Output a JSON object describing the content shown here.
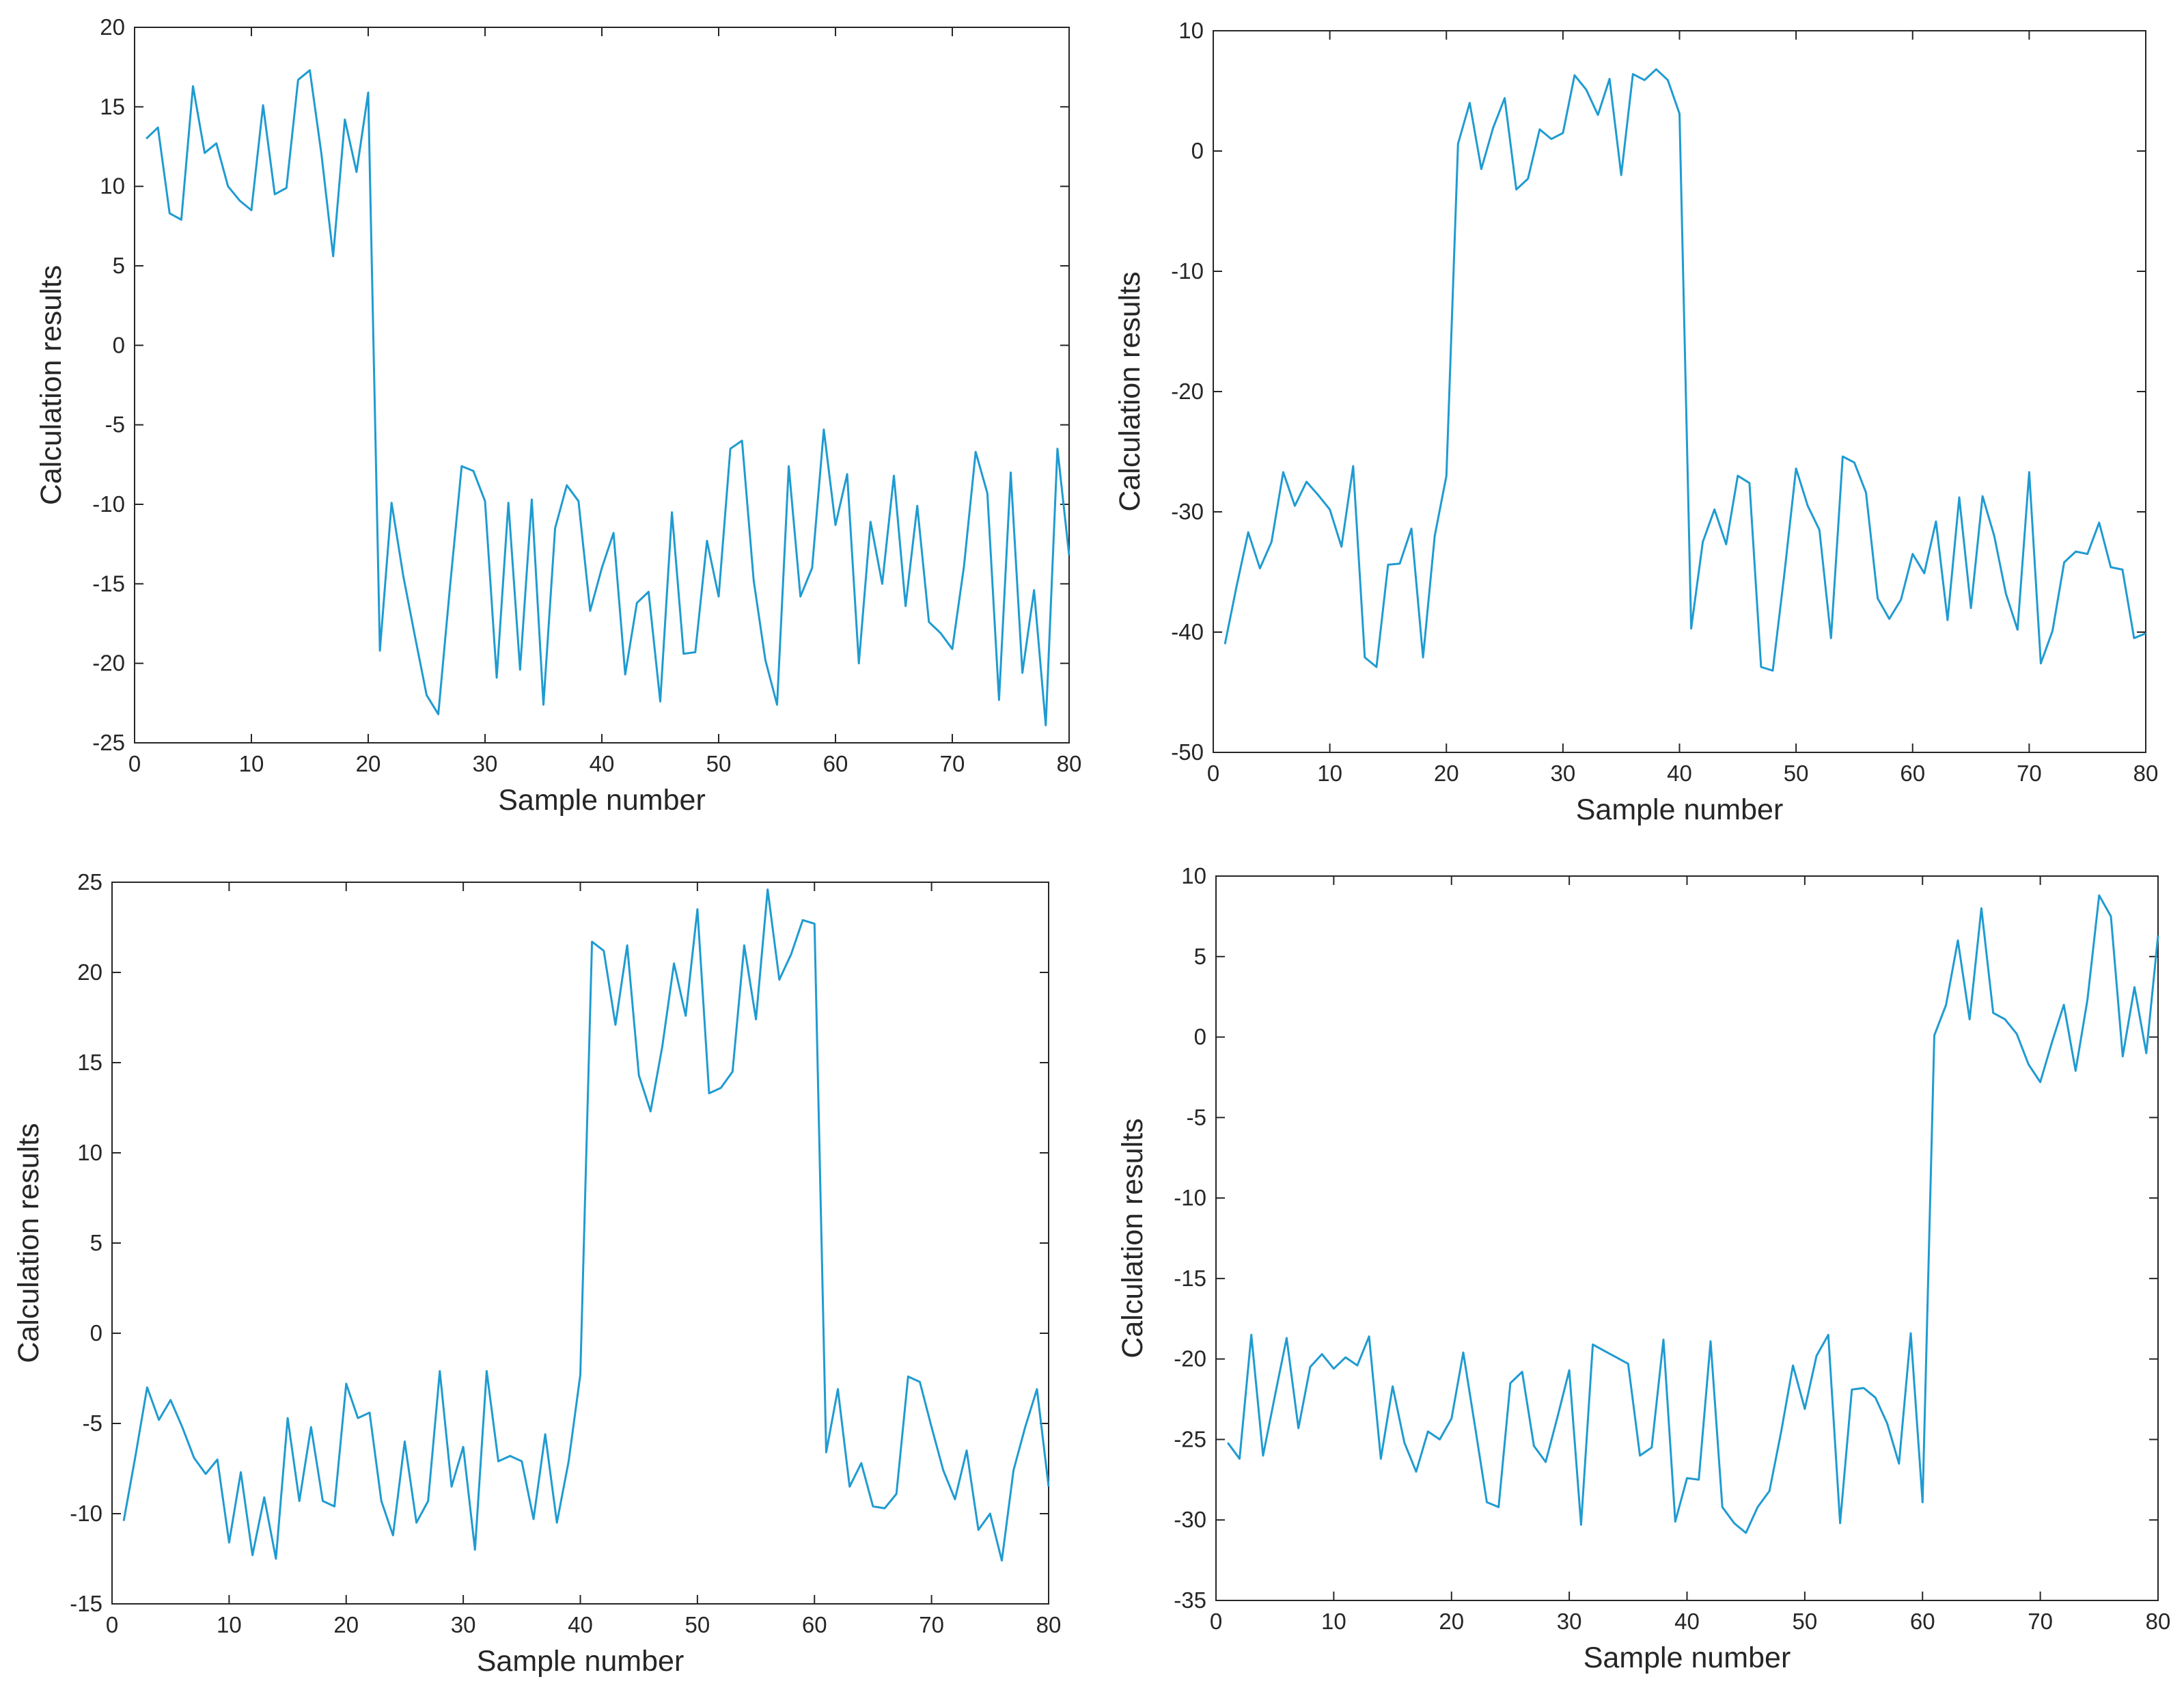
{
  "chart_data": [
    {
      "type": "line",
      "xlabel": "Sample number",
      "ylabel": "Calculation results",
      "xlim": [
        0,
        80
      ],
      "ylim": [
        -25,
        20
      ],
      "xticks": [
        0,
        10,
        20,
        30,
        40,
        50,
        60,
        70,
        80
      ],
      "yticks": [
        -25,
        -20,
        -15,
        -10,
        -5,
        0,
        5,
        10,
        15,
        20
      ],
      "series": [
        {
          "name": "Calculation results",
          "color": "#1f9bd1",
          "x": [
            1,
            2,
            3,
            4,
            5,
            6,
            7,
            8,
            9,
            10,
            11,
            12,
            13,
            14,
            15,
            16,
            17,
            18,
            19,
            20,
            21,
            22,
            23,
            24,
            25,
            26,
            27,
            28,
            29,
            30,
            31,
            32,
            33,
            34,
            35,
            36,
            37,
            38,
            39,
            40,
            41,
            42,
            43,
            44,
            45,
            46,
            47,
            48,
            49,
            50,
            51,
            52,
            53,
            54,
            55,
            56,
            57,
            58,
            59,
            60,
            61,
            62,
            63,
            64,
            65,
            66,
            67,
            68,
            69,
            70,
            71,
            72,
            73,
            74,
            75,
            76,
            77,
            78,
            79,
            80
          ],
          "values": [
            13,
            13.7,
            8.3,
            7.9,
            16.3,
            12.1,
            12.7,
            10,
            9.1,
            8.5,
            15.1,
            9.5,
            9.9,
            16.7,
            17.3,
            12,
            5.6,
            14.2,
            10.9,
            15.9,
            -19.2,
            -9.9,
            -14.5,
            -18.3,
            -22,
            -23.2,
            -15.2,
            -7.6,
            -7.9,
            -9.8,
            -20.9,
            -9.9,
            -20.4,
            -9.7,
            -22.6,
            -11.5,
            -8.8,
            -9.8,
            -16.7,
            -14,
            -11.8,
            -20.7,
            -16.2,
            -15.5,
            -22.4,
            -10.5,
            -19.4,
            -19.3,
            -12.3,
            -15.8,
            -6.5,
            -6,
            -14.8,
            -19.8,
            -22.6,
            -7.6,
            -15.8,
            -14,
            -5.3,
            -11.3,
            -8.1,
            -20,
            -11.1,
            -15,
            -8.2,
            -16.4,
            -10.1,
            -17.4,
            -18.1,
            -19.1,
            -13.9,
            -6.7,
            -9.3,
            -22.3,
            -8,
            -20.6,
            -15.4,
            -23.9,
            -6.5,
            -13.2
          ]
        }
      ]
    },
    {
      "type": "line",
      "xlabel": "Sample number",
      "ylabel": "Calculation results",
      "xlim": [
        0,
        80
      ],
      "ylim": [
        -50,
        10
      ],
      "xticks": [
        0,
        10,
        20,
        30,
        40,
        50,
        60,
        70,
        80
      ],
      "yticks": [
        -50,
        -40,
        -30,
        -20,
        -10,
        0,
        10
      ],
      "series": [
        {
          "name": "Calculation results",
          "color": "#1f9bd1",
          "x": [
            1,
            2,
            3,
            4,
            5,
            6,
            7,
            8,
            9,
            10,
            11,
            12,
            13,
            14,
            15,
            16,
            17,
            18,
            19,
            20,
            21,
            22,
            23,
            24,
            25,
            26,
            27,
            28,
            29,
            30,
            31,
            32,
            33,
            34,
            35,
            36,
            37,
            38,
            39,
            40,
            41,
            42,
            43,
            44,
            45,
            46,
            47,
            48,
            49,
            50,
            51,
            52,
            53,
            54,
            55,
            56,
            57,
            58,
            59,
            60,
            61,
            62,
            63,
            64,
            65,
            66,
            67,
            68,
            69,
            70,
            71,
            72,
            73,
            74,
            75,
            76,
            77,
            78,
            79,
            80
          ],
          "values": [
            -41,
            -36.2,
            -31.7,
            -34.7,
            -32.5,
            -26.7,
            -29.5,
            -27.5,
            -28.6,
            -29.8,
            -32.9,
            -26.2,
            -42.1,
            -42.9,
            -34.4,
            -34.3,
            -31.4,
            -42.1,
            -32,
            -27,
            0.6,
            4,
            -1.5,
            1.9,
            4.4,
            -3.2,
            -2.3,
            1.8,
            1,
            1.5,
            6.3,
            5.1,
            3,
            6,
            -2,
            6.4,
            5.9,
            6.8,
            5.9,
            3.1,
            -39.7,
            -32.5,
            -29.8,
            -32.7,
            -27,
            -27.6,
            -42.9,
            -43.2,
            -35.1,
            -26.4,
            -29.5,
            -31.5,
            -40.5,
            -25.4,
            -25.9,
            -28.4,
            -37.2,
            -38.9,
            -37.3,
            -33.5,
            -35.1,
            -30.8,
            -39,
            -28.8,
            -38,
            -28.7,
            -32,
            -36.8,
            -39.8,
            -26.7,
            -42.6,
            -39.9,
            -34.2,
            -33.3,
            -33.5,
            -30.9,
            -34.6,
            -34.8,
            -40.5,
            -40.1
          ]
        }
      ]
    },
    {
      "type": "line",
      "xlabel": "Sample number",
      "ylabel": "Calculation results",
      "xlim": [
        0,
        80
      ],
      "ylim": [
        -15,
        25
      ],
      "xticks": [
        0,
        10,
        20,
        30,
        40,
        50,
        60,
        70,
        80
      ],
      "yticks": [
        -15,
        -10,
        -5,
        0,
        5,
        10,
        15,
        20,
        25
      ],
      "series": [
        {
          "name": "Calculation results",
          "color": "#1f9bd1",
          "x": [
            1,
            2,
            3,
            4,
            5,
            6,
            7,
            8,
            9,
            10,
            11,
            12,
            13,
            14,
            15,
            16,
            17,
            18,
            19,
            20,
            21,
            22,
            23,
            24,
            25,
            26,
            27,
            28,
            29,
            30,
            31,
            32,
            33,
            34,
            35,
            36,
            37,
            38,
            39,
            40,
            41,
            42,
            43,
            44,
            45,
            46,
            47,
            48,
            49,
            50,
            51,
            52,
            53,
            54,
            55,
            56,
            57,
            58,
            59,
            60,
            61,
            62,
            63,
            64,
            65,
            66,
            67,
            68,
            69,
            70,
            71,
            72,
            73,
            74,
            75,
            76,
            77,
            78,
            79,
            80
          ],
          "values": [
            -10.4,
            -6.8,
            -3,
            -4.8,
            -3.7,
            -5.2,
            -6.9,
            -7.8,
            -7,
            -11.6,
            -7.7,
            -12.3,
            -9.1,
            -12.5,
            -4.7,
            -9.3,
            -5.2,
            -9.3,
            -9.6,
            -2.8,
            -4.7,
            -4.4,
            -9.3,
            -11.2,
            -6,
            -10.5,
            -9.3,
            -2.1,
            -8.5,
            -6.3,
            -12,
            -2.1,
            -7.1,
            -6.8,
            -7.1,
            -10.3,
            -5.6,
            -10.5,
            -7.1,
            -2.3,
            21.7,
            21.2,
            17.1,
            21.5,
            14.3,
            12.3,
            15.9,
            20.5,
            17.6,
            23.5,
            13.3,
            13.6,
            14.5,
            21.5,
            17.4,
            24.6,
            19.6,
            21,
            22.9,
            22.7,
            -6.6,
            -3.1,
            -8.5,
            -7.2,
            -9.6,
            -9.7,
            -8.9,
            -2.4,
            -2.7,
            -5.2,
            -7.6,
            -9.2,
            -6.5,
            -10.9,
            -10,
            -12.6,
            -7.6,
            -5.2,
            -3.1,
            -8.5
          ]
        }
      ]
    },
    {
      "type": "line",
      "xlabel": "Sample number",
      "ylabel": "Calculation results",
      "xlim": [
        0,
        80
      ],
      "ylim": [
        -35,
        10
      ],
      "xticks": [
        0,
        10,
        20,
        30,
        40,
        50,
        60,
        70,
        80
      ],
      "yticks": [
        -35,
        -30,
        -25,
        -20,
        -15,
        -10,
        -5,
        0,
        5,
        10
      ],
      "series": [
        {
          "name": "Calculation results",
          "color": "#1f9bd1",
          "x": [
            1,
            2,
            3,
            4,
            5,
            6,
            7,
            8,
            9,
            10,
            11,
            12,
            13,
            14,
            15,
            16,
            17,
            18,
            19,
            20,
            21,
            22,
            23,
            24,
            25,
            26,
            27,
            28,
            29,
            30,
            31,
            32,
            33,
            34,
            35,
            36,
            37,
            38,
            39,
            40,
            41,
            42,
            43,
            44,
            45,
            46,
            47,
            48,
            49,
            50,
            51,
            52,
            53,
            54,
            55,
            56,
            57,
            58,
            59,
            60,
            61,
            62,
            63,
            64,
            65,
            66,
            67,
            68,
            69,
            70,
            71,
            72,
            73,
            74,
            75,
            76,
            77,
            78,
            79,
            80
          ],
          "values": [
            -25.2,
            -26.2,
            -18.5,
            -26,
            -22.3,
            -18.7,
            -24.3,
            -20.5,
            -19.7,
            -20.6,
            -19.9,
            -20.4,
            -18.6,
            -26.2,
            -21.7,
            -25.2,
            -27,
            -24.5,
            -25,
            -23.7,
            -19.6,
            -24.2,
            -28.9,
            -29.2,
            -21.5,
            -20.8,
            -25.4,
            -26.4,
            -23.6,
            -20.7,
            -30.3,
            -19.1,
            -19.5,
            -19.9,
            -20.3,
            -26,
            -25.5,
            -18.8,
            -30.1,
            -27.4,
            -27.5,
            -18.9,
            -29.2,
            -30.2,
            -30.8,
            -29.2,
            -28.2,
            -24.5,
            -20.4,
            -23.1,
            -19.8,
            -18.5,
            -30.2,
            -21.9,
            -21.8,
            -22.4,
            -24,
            -26.5,
            -18.4,
            -28.9,
            0.1,
            2,
            6,
            1.1,
            8,
            1.5,
            1.1,
            0.2,
            -1.7,
            -2.8,
            -0.3,
            2,
            -2.1,
            2.3,
            8.8,
            7.5,
            -1.2,
            3.1,
            -1,
            6.3
          ]
        }
      ]
    }
  ]
}
